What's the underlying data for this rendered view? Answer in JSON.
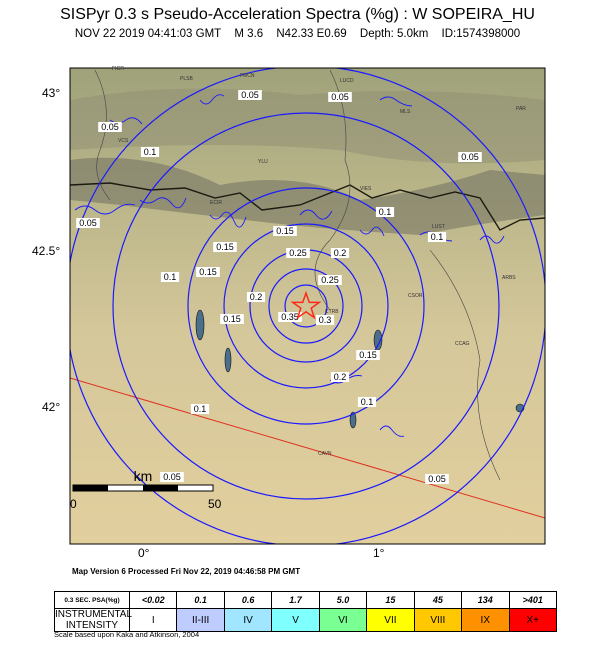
{
  "header": {
    "title": "SISPyr 0.3 s Pseudo-Acceleration Spectra (%g) : W SOPEIRA_HU",
    "date": "NOV 22 2019 04:41:03 GMT",
    "magnitude": "M 3.6",
    "location": "N42.33 E0.69",
    "depth": "Depth: 5.0km",
    "id": "ID:1574398000"
  },
  "map": {
    "lat_labels": [
      "43°",
      "42.5°",
      "42°"
    ],
    "lon_labels": [
      "0°",
      "1°"
    ],
    "scale_bar": {
      "unit": "km",
      "start": "0",
      "end": "50"
    },
    "contour_labels": [
      "0.05",
      "0.1",
      "0.15",
      "0.2",
      "0.25",
      "0.3",
      "0.35"
    ],
    "cities": [
      "PLSB",
      "FMCN",
      "LUCD",
      "VCS",
      "ECIR",
      "YLU",
      "VIES",
      "MLS",
      "PAR",
      "LUST",
      "ARBS",
      "CSOR",
      "CTRB",
      "CCAG",
      "CAVN",
      "FIGR"
    ],
    "colors": {
      "contour": "#1a1aff",
      "epicenter": "#ff2a1a",
      "road": "#e03020"
    }
  },
  "footer": {
    "map_version": "Map Version 6 Processed Fri Nov 22, 2019 04:46:58 PM GMT",
    "scale_note": "Scale based upon Kaka and Atkinson, 2004"
  },
  "legend": {
    "psa_header": "0.3 SEC. PSA(%g)",
    "intensity_header": "INSTRUMENTAL INTENSITY",
    "psa_values": [
      "<0.02",
      "0.1",
      "0.6",
      "1.7",
      "5.0",
      "15",
      "45",
      "134",
      ">401"
    ],
    "intensities": [
      "I",
      "II-III",
      "IV",
      "V",
      "VI",
      "VII",
      "VIII",
      "IX",
      "X+"
    ],
    "colors": [
      "#ffffff",
      "#bfccff",
      "#a0e6ff",
      "#80ffff",
      "#7aff93",
      "#ffff00",
      "#ffc800",
      "#ff9100",
      "#ff0000"
    ]
  }
}
